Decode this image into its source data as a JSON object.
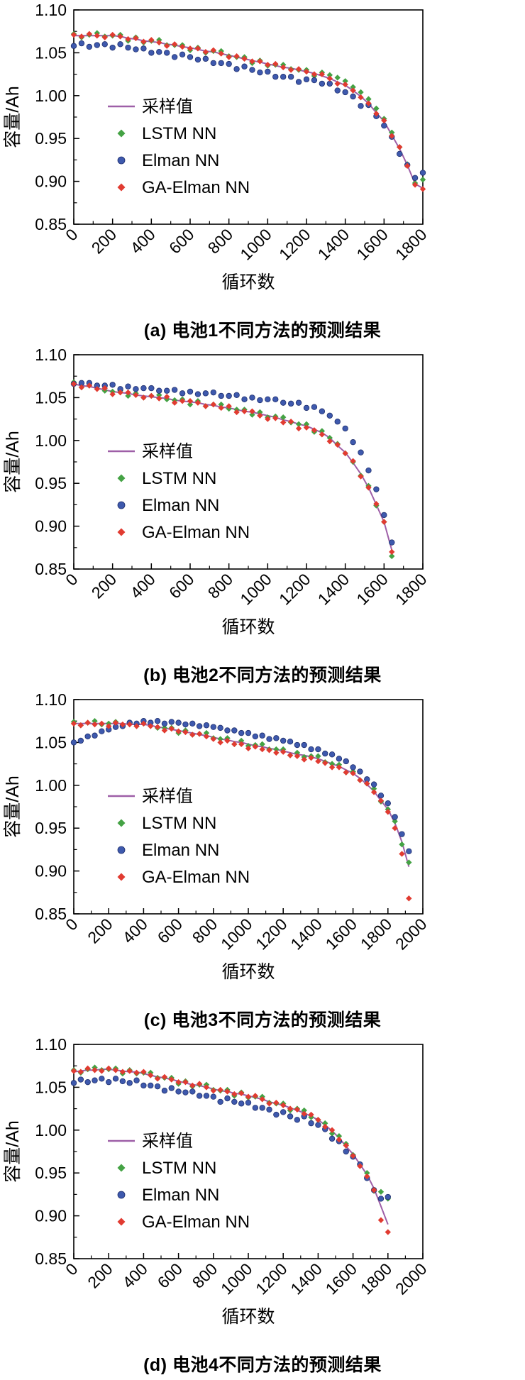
{
  "axes": {
    "xlabel": "循环数",
    "ylabel": "容量/Ah"
  },
  "colors": {
    "sampled": "#9e5fa7",
    "lstm": "#44a244",
    "elman": "#3e59ad",
    "ga": "#e13b31",
    "axis": "#000000"
  },
  "legend": {
    "position": "inside-left",
    "entries": [
      {
        "key": "sampled",
        "label": "采样值",
        "marker": "line",
        "color": "#9e5fa7"
      },
      {
        "key": "lstm",
        "label": "LSTM NN",
        "marker": "diamond",
        "color": "#44a244"
      },
      {
        "key": "elman",
        "label": "Elman NN",
        "marker": "circle",
        "color": "#3e59ad",
        "edge": "#20306e"
      },
      {
        "key": "ga",
        "label": "GA-Elman NN",
        "marker": "diamond",
        "color": "#e13b31"
      }
    ]
  },
  "chart_data": [
    {
      "type": "line+scatter",
      "title": "(a) 电池1不同方法的预测结果",
      "xlabel": "循环数",
      "ylabel": "容量/Ah",
      "xlim": [
        0,
        1800
      ],
      "ylim": [
        0.85,
        1.1
      ],
      "grid": false,
      "xticks": [
        0,
        200,
        400,
        600,
        800,
        1000,
        1200,
        1400,
        1600,
        1800
      ],
      "ytick_vals": [
        0.85,
        0.9,
        0.95,
        1.0,
        1.05,
        1.1
      ],
      "ytick_labels": [
        "0.85",
        "0.90",
        "0.95",
        "1.00",
        "1.05",
        "1.10"
      ],
      "x_start": 0,
      "x_step": 40,
      "series": [
        {
          "key": "sampled",
          "values": [
            1.07,
            1.07,
            1.07,
            1.07,
            1.07,
            1.07,
            1.069,
            1.067,
            1.066,
            1.064,
            1.063,
            1.062,
            1.06,
            1.059,
            1.057,
            1.056,
            1.054,
            1.052,
            1.051,
            1.049,
            1.047,
            1.045,
            1.043,
            1.041,
            1.039,
            1.037,
            1.035,
            1.033,
            1.032,
            1.03,
            1.028,
            1.026,
            1.023,
            1.02,
            1.016,
            1.012,
            1.006,
            0.999,
            0.991,
            0.98,
            0.97,
            0.954,
            0.938,
            0.919,
            0.897,
            0.892
          ]
        },
        {
          "key": "lstm",
          "values": [
            1.072,
            1.068,
            1.071,
            1.073,
            1.069,
            1.07,
            1.071,
            1.064,
            1.068,
            1.062,
            1.064,
            1.065,
            1.059,
            1.059,
            1.059,
            1.053,
            1.056,
            1.05,
            1.052,
            1.052,
            1.046,
            1.045,
            1.045,
            1.038,
            1.041,
            1.035,
            1.036,
            1.036,
            1.031,
            1.03,
            1.03,
            1.023,
            1.027,
            1.024,
            1.021,
            1.017,
            1.01,
            1.004,
            0.996,
            0.985,
            0.973,
            0.957,
            0.94,
            0.92,
            0.898,
            0.902
          ]
        },
        {
          "key": "elman",
          "values": [
            1.058,
            1.061,
            1.057,
            1.059,
            1.06,
            1.056,
            1.06,
            1.056,
            1.054,
            1.055,
            1.05,
            1.051,
            1.05,
            1.045,
            1.048,
            1.045,
            1.042,
            1.043,
            1.038,
            1.038,
            1.037,
            1.031,
            1.034,
            1.03,
            1.027,
            1.028,
            1.022,
            1.022,
            1.022,
            1.016,
            1.019,
            1.018,
            1.014,
            1.014,
            1.006,
            1.004,
            0.999,
            0.988,
            0.989,
            0.976,
            0.965,
            0.952,
            0.932,
            0.919,
            0.904,
            0.91
          ]
        },
        {
          "key": "ga",
          "values": [
            1.071,
            1.069,
            1.072,
            1.07,
            1.068,
            1.071,
            1.069,
            1.066,
            1.067,
            1.063,
            1.065,
            1.062,
            1.058,
            1.06,
            1.057,
            1.055,
            1.055,
            1.051,
            1.053,
            1.049,
            1.045,
            1.046,
            1.043,
            1.04,
            1.04,
            1.036,
            1.037,
            1.033,
            1.03,
            1.031,
            1.028,
            1.025,
            1.025,
            1.02,
            1.014,
            1.013,
            1.006,
            0.998,
            0.991,
            0.979,
            0.971,
            0.953,
            0.94,
            0.918,
            0.896,
            0.891
          ]
        }
      ]
    },
    {
      "type": "line+scatter",
      "title": "(b) 电池2不同方法的预测结果",
      "xlabel": "循环数",
      "ylabel": "容量/Ah",
      "xlim": [
        0,
        1800
      ],
      "ylim": [
        0.85,
        1.1
      ],
      "grid": false,
      "xticks": [
        0,
        200,
        400,
        600,
        800,
        1000,
        1200,
        1400,
        1600,
        1800
      ],
      "ytick_vals": [
        0.85,
        0.9,
        0.95,
        1.0,
        1.05,
        1.1
      ],
      "ytick_labels": [
        "0.85",
        "0.90",
        "0.95",
        "1.00",
        "1.05",
        "1.10"
      ],
      "x_start": 0,
      "x_step": 40,
      "series": [
        {
          "key": "sampled",
          "values": [
            1.066,
            1.064,
            1.063,
            1.061,
            1.059,
            1.057,
            1.056,
            1.055,
            1.053,
            1.052,
            1.051,
            1.05,
            1.049,
            1.047,
            1.046,
            1.045,
            1.044,
            1.042,
            1.041,
            1.039,
            1.038,
            1.036,
            1.034,
            1.033,
            1.031,
            1.029,
            1.027,
            1.024,
            1.022,
            1.019,
            1.017,
            1.013,
            1.009,
            1.003,
            0.994,
            0.986,
            0.974,
            0.961,
            0.945,
            0.925,
            0.905,
            0.872
          ]
        },
        {
          "key": "lstm",
          "values": [
            1.068,
            1.062,
            1.064,
            1.064,
            1.058,
            1.057,
            1.058,
            1.052,
            1.055,
            1.05,
            1.052,
            1.053,
            1.048,
            1.047,
            1.048,
            1.042,
            1.046,
            1.04,
            1.042,
            1.042,
            1.037,
            1.036,
            1.036,
            1.03,
            1.033,
            1.027,
            1.028,
            1.027,
            1.021,
            1.019,
            1.019,
            1.01,
            1.011,
            1.003,
            0.996,
            0.985,
            0.975,
            0.959,
            0.947,
            0.924,
            0.905,
            0.865
          ]
        },
        {
          "key": "elman",
          "values": [
            1.066,
            1.067,
            1.067,
            1.064,
            1.064,
            1.065,
            1.06,
            1.063,
            1.06,
            1.061,
            1.061,
            1.058,
            1.058,
            1.059,
            1.055,
            1.057,
            1.054,
            1.055,
            1.056,
            1.052,
            1.052,
            1.053,
            1.048,
            1.05,
            1.047,
            1.048,
            1.048,
            1.044,
            1.043,
            1.044,
            1.038,
            1.039,
            1.034,
            1.029,
            1.022,
            1.014,
            0.998,
            0.986,
            0.965,
            0.943,
            0.913,
            0.881
          ]
        },
        {
          "key": "ga",
          "values": [
            1.066,
            1.062,
            1.064,
            1.06,
            1.061,
            1.054,
            1.056,
            1.056,
            1.053,
            1.05,
            1.052,
            1.049,
            1.051,
            1.044,
            1.046,
            1.046,
            1.044,
            1.04,
            1.042,
            1.038,
            1.04,
            1.033,
            1.034,
            1.034,
            1.029,
            1.025,
            1.026,
            1.021,
            1.022,
            1.014,
            1.015,
            1.012,
            1.007,
            0.999,
            0.995,
            0.985,
            0.976,
            0.958,
            0.945,
            0.926,
            0.905,
            0.87
          ]
        }
      ]
    },
    {
      "type": "line+scatter",
      "title": "(c) 电池3不同方法的预测结果",
      "xlabel": "循环数",
      "ylabel": "容量/Ah",
      "xlim": [
        0,
        2000
      ],
      "ylim": [
        0.85,
        1.1
      ],
      "grid": false,
      "xticks": [
        0,
        200,
        400,
        600,
        800,
        1000,
        1200,
        1400,
        1600,
        1800,
        2000
      ],
      "ytick_vals": [
        0.85,
        0.9,
        0.95,
        1.0,
        1.05,
        1.1
      ],
      "ytick_labels": [
        "0.85",
        "0.90",
        "0.95",
        "1.00",
        "1.05",
        "1.10"
      ],
      "x_start": 0,
      "x_step": 40,
      "series": [
        {
          "key": "sampled",
          "values": [
            1.072,
            1.072,
            1.072,
            1.072,
            1.072,
            1.072,
            1.072,
            1.072,
            1.071,
            1.071,
            1.071,
            1.07,
            1.068,
            1.067,
            1.065,
            1.064,
            1.062,
            1.061,
            1.059,
            1.058,
            1.056,
            1.054,
            1.053,
            1.051,
            1.05,
            1.048,
            1.046,
            1.045,
            1.043,
            1.042,
            1.04,
            1.038,
            1.036,
            1.035,
            1.033,
            1.031,
            1.028,
            1.025,
            1.022,
            1.018,
            1.014,
            1.008,
            1.001,
            0.993,
            0.982,
            0.972,
            0.956,
            0.934,
            0.905
          ]
        },
        {
          "key": "lstm",
          "values": [
            1.074,
            1.07,
            1.073,
            1.075,
            1.071,
            1.072,
            1.074,
            1.069,
            1.073,
            1.069,
            1.072,
            1.073,
            1.067,
            1.067,
            1.067,
            1.061,
            1.064,
            1.059,
            1.06,
            1.061,
            1.055,
            1.054,
            1.055,
            1.048,
            1.052,
            1.046,
            1.047,
            1.048,
            1.042,
            1.042,
            1.042,
            1.035,
            1.038,
            1.033,
            1.034,
            1.034,
            1.027,
            1.025,
            1.024,
            1.015,
            1.016,
            1.006,
            1.002,
            0.996,
            0.981,
            0.972,
            0.958,
            0.931,
            0.91
          ]
        },
        {
          "key": "elman",
          "values": [
            1.05,
            1.052,
            1.057,
            1.058,
            1.063,
            1.065,
            1.068,
            1.069,
            1.073,
            1.072,
            1.075,
            1.073,
            1.075,
            1.072,
            1.074,
            1.073,
            1.071,
            1.072,
            1.069,
            1.07,
            1.068,
            1.067,
            1.064,
            1.064,
            1.061,
            1.061,
            1.057,
            1.058,
            1.054,
            1.055,
            1.052,
            1.051,
            1.047,
            1.047,
            1.042,
            1.042,
            1.037,
            1.036,
            1.031,
            1.028,
            1.021,
            1.016,
            1.007,
            1.001,
            0.988,
            0.979,
            0.963,
            0.943,
            0.923
          ]
        },
        {
          "key": "ga",
          "values": [
            1.072,
            1.07,
            1.073,
            1.071,
            1.072,
            1.069,
            1.073,
            1.071,
            1.071,
            1.069,
            1.072,
            1.069,
            1.068,
            1.064,
            1.066,
            1.063,
            1.062,
            1.059,
            1.06,
            1.057,
            1.054,
            1.05,
            1.052,
            1.048,
            1.048,
            1.043,
            1.045,
            1.042,
            1.041,
            1.038,
            1.039,
            1.035,
            1.034,
            1.03,
            1.032,
            1.028,
            1.026,
            1.021,
            1.021,
            1.015,
            1.014,
            1.006,
            1.002,
            0.992,
            0.982,
            0.969,
            0.95,
            0.92,
            0.868
          ]
        }
      ]
    },
    {
      "type": "line+scatter",
      "title": "(d) 电池4不同方法的预测结果",
      "xlabel": "循环数",
      "ylabel": "容量/Ah",
      "xlim": [
        0,
        2000
      ],
      "ylim": [
        0.85,
        1.1
      ],
      "grid": false,
      "xticks": [
        0,
        200,
        400,
        600,
        800,
        1000,
        1200,
        1400,
        1600,
        1800,
        2000
      ],
      "ytick_vals": [
        0.85,
        0.9,
        0.95,
        1.0,
        1.05,
        1.1
      ],
      "ytick_labels": [
        "0.85",
        "0.90",
        "0.95",
        "1.00",
        "1.05",
        "1.10"
      ],
      "x_start": 0,
      "x_step": 40,
      "series": [
        {
          "key": "sampled",
          "values": [
            1.068,
            1.069,
            1.07,
            1.07,
            1.071,
            1.071,
            1.07,
            1.069,
            1.068,
            1.068,
            1.066,
            1.064,
            1.062,
            1.061,
            1.059,
            1.057,
            1.055,
            1.053,
            1.052,
            1.05,
            1.048,
            1.046,
            1.045,
            1.043,
            1.042,
            1.04,
            1.038,
            1.036,
            1.033,
            1.031,
            1.029,
            1.026,
            1.023,
            1.02,
            1.016,
            1.012,
            1.006,
            0.999,
            0.991,
            0.981,
            0.972,
            0.96,
            0.948,
            0.932,
            0.911,
            0.89
          ]
        },
        {
          "key": "lstm",
          "values": [
            1.07,
            1.067,
            1.071,
            1.073,
            1.07,
            1.071,
            1.072,
            1.066,
            1.07,
            1.066,
            1.067,
            1.067,
            1.061,
            1.061,
            1.061,
            1.054,
            1.057,
            1.051,
            1.053,
            1.053,
            1.047,
            1.046,
            1.047,
            1.04,
            1.044,
            1.038,
            1.039,
            1.039,
            1.032,
            1.031,
            1.031,
            1.023,
            1.025,
            1.023,
            1.015,
            1.012,
            1.008,
            0.996,
            0.993,
            0.984,
            0.971,
            0.96,
            0.95,
            0.929,
            0.928,
            0.92
          ]
        },
        {
          "key": "elman",
          "values": [
            1.055,
            1.059,
            1.056,
            1.058,
            1.06,
            1.056,
            1.06,
            1.057,
            1.055,
            1.058,
            1.052,
            1.052,
            1.051,
            1.046,
            1.049,
            1.045,
            1.044,
            1.045,
            1.04,
            1.04,
            1.039,
            1.033,
            1.037,
            1.033,
            1.031,
            1.032,
            1.026,
            1.026,
            1.024,
            1.018,
            1.021,
            1.016,
            1.012,
            1.016,
            1.008,
            1.006,
            1.001,
            0.99,
            0.987,
            0.975,
            0.969,
            0.96,
            0.944,
            0.93,
            0.92,
            0.922
          ]
        },
        {
          "key": "ga",
          "values": [
            1.069,
            1.068,
            1.072,
            1.07,
            1.069,
            1.072,
            1.07,
            1.068,
            1.069,
            1.067,
            1.068,
            1.064,
            1.06,
            1.062,
            1.059,
            1.056,
            1.056,
            1.052,
            1.054,
            1.05,
            1.046,
            1.047,
            1.045,
            1.042,
            1.043,
            1.039,
            1.04,
            1.036,
            1.031,
            1.032,
            1.029,
            1.025,
            1.024,
            1.019,
            1.018,
            1.012,
            1.004,
            1.0,
            0.989,
            0.982,
            0.97,
            0.958,
            0.946,
            0.93,
            0.895,
            0.881
          ]
        }
      ]
    }
  ]
}
